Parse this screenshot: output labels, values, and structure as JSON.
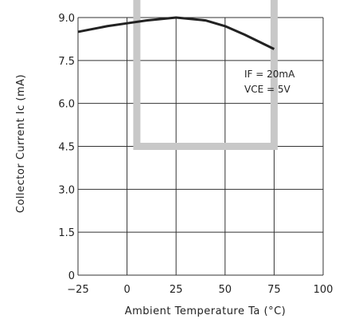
{
  "chart_data": {
    "type": "line",
    "xlabel": "Ambient Temperature Ta (°C)",
    "ylabel": "Collector Current Ic (mA)",
    "xlim": [
      -25,
      100
    ],
    "ylim": [
      0,
      9.0
    ],
    "x_ticks": [
      "−25",
      "0",
      "25",
      "50",
      "75",
      "100"
    ],
    "y_ticks": [
      "0",
      "1.5",
      "3.0",
      "4.5",
      "6.0",
      "7.5",
      "9.0"
    ],
    "grid": true,
    "series": [
      {
        "x": [
          -25,
          -10,
          0,
          10,
          25,
          40,
          50,
          60,
          75
        ],
        "values": [
          8.5,
          8.7,
          8.8,
          8.9,
          9.0,
          8.9,
          8.7,
          8.4,
          7.9
        ]
      }
    ],
    "annotations": [
      "IF = 20mA",
      "VCE = 5V"
    ],
    "highlight_color": "#c8c8c8",
    "line_color": "#222222"
  }
}
